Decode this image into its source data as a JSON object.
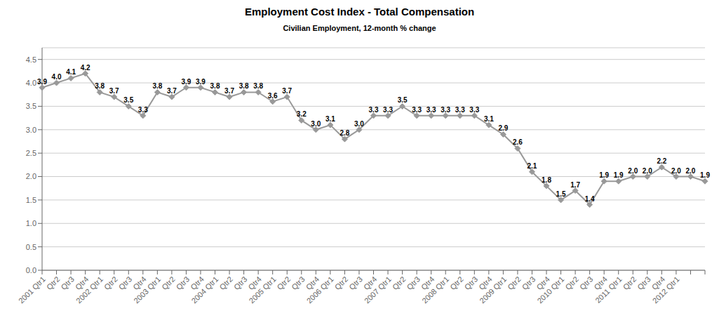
{
  "chart_data": {
    "type": "line",
    "title": "Employment Cost Index - Total Compensation",
    "subtitle": "Civilian Employment, 12-month % change",
    "categories": [
      "2001 Qtr1",
      "Qtr2",
      "Qtr3",
      "Qtr4",
      "2002 Qtr1",
      "Qtr2",
      "Qtr3",
      "Qtr4",
      "2003 Qtr1",
      "Qtr2",
      "Qtr3",
      "Qtr4",
      "2004 Qtr1",
      "Qtr2",
      "Qtr3",
      "Qtr4",
      "2005 Qtr1",
      "Qtr2",
      "Qtr3",
      "Qtr4",
      "2006 Qtr1",
      "Qtr2",
      "Qtr3",
      "Qtr4",
      "2007 Qtr1",
      "Qtr2",
      "Qtr3",
      "Qtr4",
      "2008 Qtr1",
      "Qtr2",
      "Qtr3",
      "Qtr4",
      "2009 Qtr1",
      "Qtr2",
      "Qtr3",
      "Qtr4",
      "2010 Qtr1",
      "Qtr2",
      "Qtr3",
      "Qtr4",
      "2011 Qtr1",
      "Qtr2",
      "Qtr3",
      "Qtr4",
      "2012 Qtr1",
      null,
      null
    ],
    "values": [
      3.9,
      4.0,
      4.1,
      4.2,
      3.8,
      3.7,
      3.5,
      3.3,
      3.8,
      3.7,
      3.9,
      3.9,
      3.8,
      3.7,
      3.8,
      3.8,
      3.6,
      3.7,
      3.2,
      3.0,
      3.1,
      2.8,
      3.0,
      3.3,
      3.3,
      3.5,
      3.3,
      3.3,
      3.3,
      3.3,
      3.3,
      3.1,
      2.9,
      2.6,
      2.1,
      1.8,
      1.5,
      1.7,
      1.4,
      1.9,
      1.9,
      2.0,
      2.0,
      2.2,
      2.0,
      2.0,
      1.9
    ],
    "value_labels": [
      "3.9",
      "4.0",
      "4.1",
      "4.2",
      "3.8",
      "3.7",
      "3.5",
      "3.3",
      "3.8",
      "3.7",
      "3.9",
      "3.9",
      "3.8",
      "3.7",
      "3.8",
      "3.8",
      "3.6",
      "3.7",
      "3.2",
      "3.0",
      "3.1",
      "2.8",
      "3.0",
      "3.3",
      "3.3",
      "3.5",
      "3.3",
      "3.3",
      "3.3",
      "3.3",
      "3.3",
      "3.1",
      "2.9",
      "2.6",
      "2.1",
      "1.8",
      "1.5",
      "1.7",
      "1.4",
      "1.9",
      "1.9",
      "2.0",
      "2.0",
      "2.2",
      "2.0",
      "2.0",
      "1.9"
    ],
    "color": "#999999",
    "marker": "diamond",
    "ylim": [
      0.0,
      4.75
    ],
    "yticks": [
      {
        "value": 0.0,
        "label": "0.0"
      },
      0.5,
      {
        "value": 1.0,
        "label": "1.0"
      },
      1.5,
      {
        "value": 2.0,
        "label": "2.0"
      },
      2.5,
      {
        "value": 3.0,
        "label": "3.0"
      },
      3.5,
      {
        "value": 4.0,
        "label": "4.0"
      },
      4.5
    ],
    "grid": true,
    "data_labels": true
  }
}
